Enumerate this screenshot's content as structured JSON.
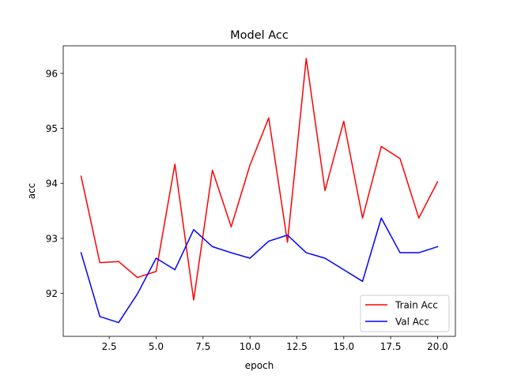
{
  "chart_data": {
    "type": "line",
    "title": "Model Acc",
    "xlabel": "epoch",
    "ylabel": "acc",
    "xlim": [
      0.05,
      20.95
    ],
    "ylim": [
      91.22,
      96.5
    ],
    "xticks": [
      2.5,
      5.0,
      7.5,
      10.0,
      12.5,
      15.0,
      17.5,
      20.0
    ],
    "xtick_labels": [
      "2.5",
      "5.0",
      "7.5",
      "10.0",
      "12.5",
      "15.0",
      "17.5",
      "20.0"
    ],
    "yticks": [
      92,
      93,
      94,
      95,
      96
    ],
    "ytick_labels": [
      "92",
      "93",
      "94",
      "95",
      "96"
    ],
    "grid": false,
    "legend_position": "lower-right",
    "x": [
      1,
      2,
      3,
      4,
      5,
      6,
      7,
      8,
      9,
      10,
      11,
      12,
      13,
      14,
      15,
      16,
      17,
      18,
      19,
      20
    ],
    "series": [
      {
        "name": "Train Acc",
        "color": "#ff0000",
        "values": [
          94.13,
          92.56,
          92.58,
          92.29,
          92.4,
          94.35,
          91.88,
          94.24,
          93.21,
          94.33,
          95.19,
          92.93,
          96.27,
          93.87,
          95.13,
          93.37,
          94.67,
          94.45,
          93.37,
          94.03
        ]
      },
      {
        "name": "Val Acc",
        "color": "#0000ff",
        "values": [
          92.74,
          91.58,
          91.47,
          91.99,
          92.64,
          92.43,
          93.16,
          92.85,
          92.74,
          92.64,
          92.95,
          93.06,
          92.74,
          92.64,
          92.43,
          92.22,
          93.37,
          92.74,
          92.74,
          92.85
        ]
      }
    ]
  }
}
